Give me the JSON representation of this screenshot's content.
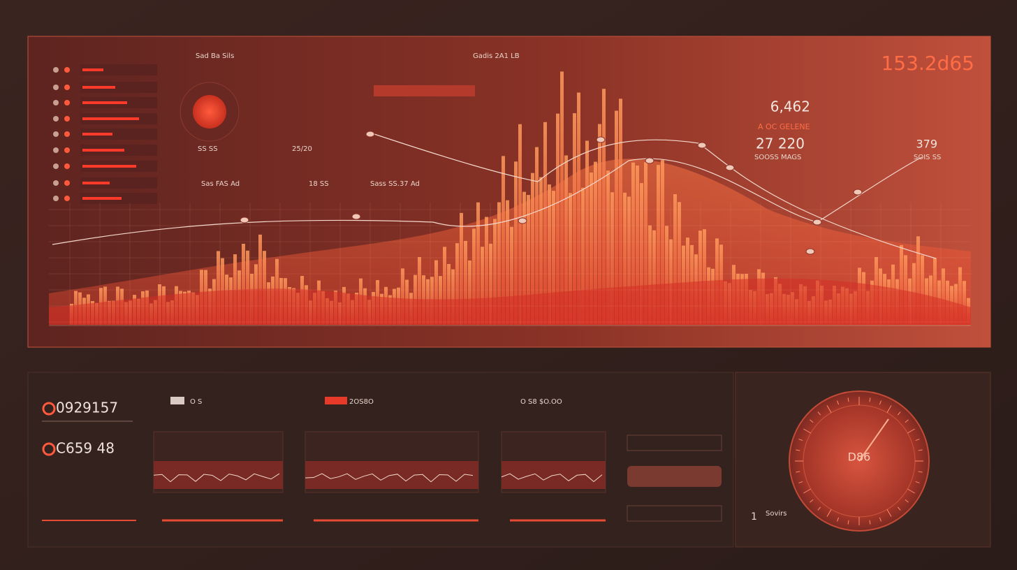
{
  "top_panel": {
    "big_value": "153.2d65",
    "stats": [
      {
        "value": "6,462",
        "label": "A OC GELENE"
      },
      {
        "value": "27 220",
        "label": "SOOSS MAGS"
      },
      {
        "value": "379",
        "label": "SOIS SS"
      }
    ],
    "labels": [
      "Sad Ba Sils",
      "Gadis 2A1 LB",
      "18 SS",
      "25/20",
      "Sass SS.37 Ad",
      "SS SS",
      "Sas FAS Ad"
    ]
  },
  "bottom_panel": {
    "metrics": [
      "0929157",
      "C659 48"
    ],
    "cards": [
      "O S",
      "2OS8O",
      "O S8 $O.OO"
    ]
  },
  "gauge": {
    "label": "D86",
    "caption": "Sovirs",
    "index": "1"
  }
}
